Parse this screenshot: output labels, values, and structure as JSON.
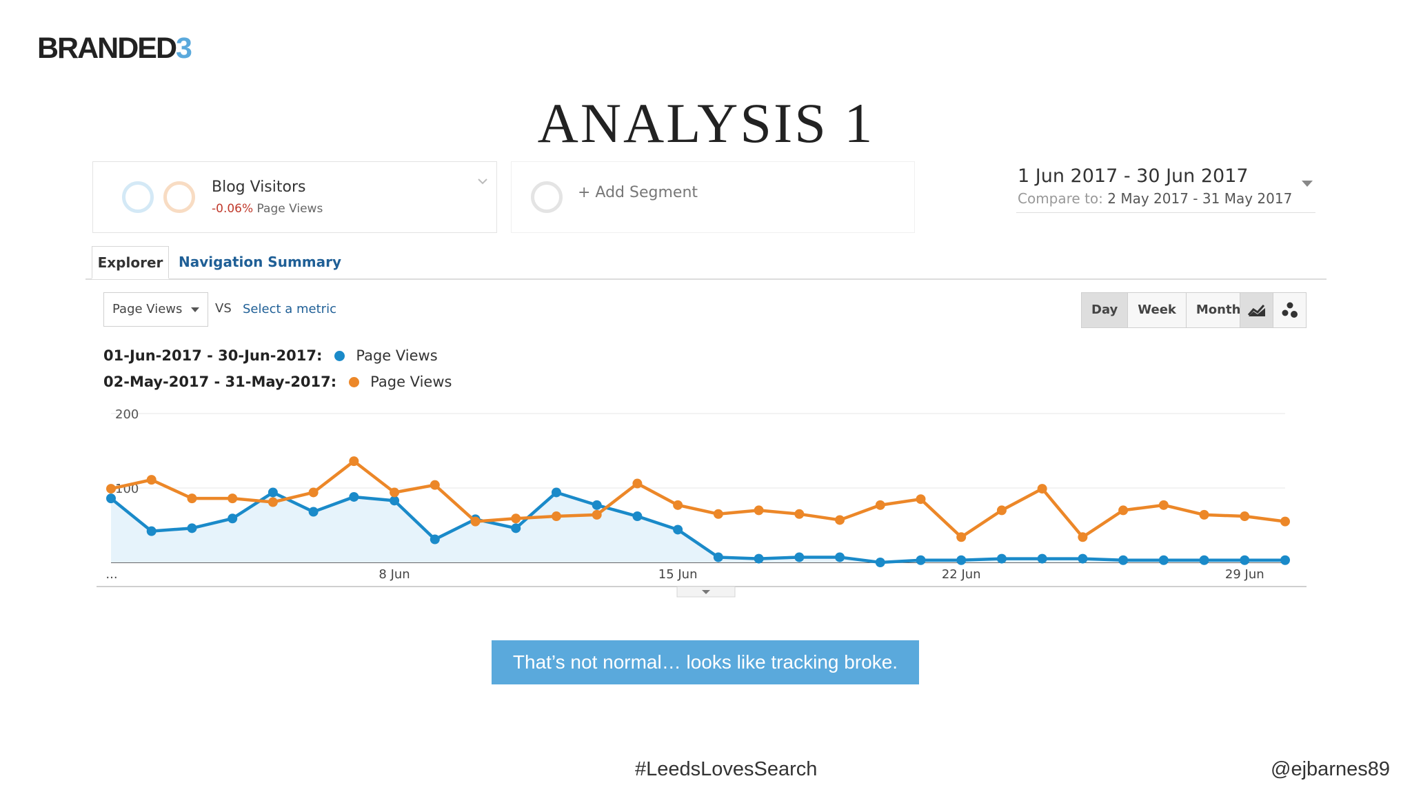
{
  "brand": {
    "name_main": "BRANDED",
    "name_accent": "3",
    "accent_color": "#5aa9dc"
  },
  "slide": {
    "title": "ANALYSIS 1"
  },
  "segments": {
    "active": {
      "name": "Blog Visitors",
      "change": "-0.06%",
      "metric": "Page Views"
    },
    "add_label": "+ Add Segment"
  },
  "date_range": {
    "main": "1 Jun 2017 - 30 Jun 2017",
    "compare_label": "Compare to:",
    "compare_value": "2 May 2017 - 31 May 2017"
  },
  "tabs": [
    {
      "label": "Explorer",
      "active": true
    },
    {
      "label": "Navigation Summary",
      "active": false
    }
  ],
  "controls": {
    "metric": "Page Views",
    "vs": "VS",
    "select_metric": "Select a metric",
    "granularity": [
      "Day",
      "Week",
      "Month"
    ],
    "granularity_selected": "Day",
    "chart_modes": [
      {
        "icon": "line-chart-icon",
        "selected": true
      },
      {
        "icon": "motion-chart-icon",
        "selected": false
      }
    ]
  },
  "legend": [
    {
      "range": "01-Jun-2017 - 30-Jun-2017:",
      "name": "Page Views",
      "color": "#1a8ac9"
    },
    {
      "range": "02-May-2017 - 31-May-2017:",
      "name": "Page Views",
      "color": "#ec8728"
    }
  ],
  "chart_data": {
    "type": "line",
    "x": [
      1,
      2,
      3,
      4,
      5,
      6,
      7,
      8,
      9,
      10,
      11,
      12,
      13,
      14,
      15,
      16,
      17,
      18,
      19,
      20,
      21,
      22,
      23,
      24,
      25,
      26,
      27,
      28,
      29,
      30
    ],
    "xtick_labels": [
      "...",
      "8 Jun",
      "15 Jun",
      "22 Jun",
      "29 Jun"
    ],
    "xtick_positions": [
      1,
      8,
      15,
      22,
      29
    ],
    "yticks": [
      100,
      200
    ],
    "ylim": [
      0,
      200
    ],
    "series": [
      {
        "name": "Page Views",
        "color": "#1a8ac9",
        "area": true,
        "values": [
          86,
          42,
          46,
          59,
          94,
          68,
          88,
          83,
          31,
          58,
          46,
          94,
          77,
          62,
          44,
          7,
          5,
          7,
          7,
          0,
          3,
          3,
          5,
          5,
          5,
          3,
          3,
          3,
          3,
          3
        ]
      },
      {
        "name": "Page Views",
        "color": "#ec8728",
        "area": false,
        "values": [
          99,
          111,
          86,
          86,
          81,
          94,
          136,
          94,
          104,
          55,
          59,
          62,
          64,
          106,
          77,
          65,
          70,
          65,
          57,
          77,
          85,
          34,
          70,
          99,
          34,
          70,
          77,
          64,
          62,
          55
        ]
      }
    ]
  },
  "callout": "That’s not normal… looks like tracking broke.",
  "footer": {
    "hashtag": "#LeedsLovesSearch",
    "handle": "@ejbarnes89"
  }
}
